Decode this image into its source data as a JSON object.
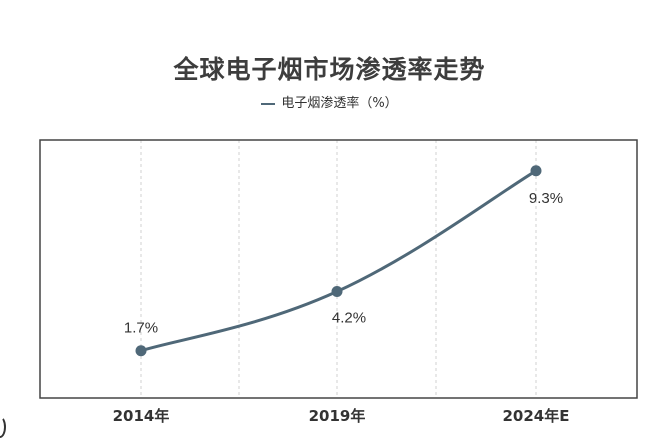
{
  "chart_data": {
    "type": "line",
    "title": "全球电子烟市场渗透率走势",
    "categories": [
      "2014年",
      "2019年",
      "2024年E"
    ],
    "series": [
      {
        "name": "电子烟渗透率（%）",
        "values": [
          1.7,
          4.2,
          9.3
        ],
        "labels": [
          "1.7%",
          "4.2%",
          "9.3%"
        ],
        "color": "#4f6878"
      }
    ],
    "xlabel": "",
    "ylabel": "",
    "ylim": [
      0,
      10.6
    ],
    "grid": "vertical dashed",
    "legend": "top-center"
  }
}
